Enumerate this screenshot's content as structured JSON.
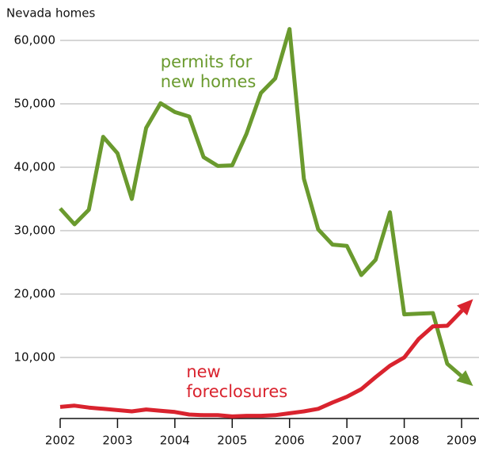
{
  "chart_data": {
    "type": "line",
    "y_axis_label": "Nevada homes",
    "x": [
      2002,
      2002.25,
      2002.5,
      2002.75,
      2003,
      2003.25,
      2003.5,
      2003.75,
      2004,
      2004.25,
      2004.5,
      2004.75,
      2005,
      2005.25,
      2005.5,
      2005.75,
      2006,
      2006.25,
      2006.5,
      2006.75,
      2007,
      2007.25,
      2007.5,
      2007.75,
      2008,
      2008.25,
      2008.5,
      2008.75,
      2009.2
    ],
    "series": [
      {
        "name": "permits for new homes",
        "color": "#6a9a2e",
        "end_arrow": true,
        "values": [
          33500,
          31000,
          33300,
          44800,
          42200,
          35000,
          46200,
          50100,
          48700,
          48000,
          41600,
          40200,
          40300,
          45300,
          51700,
          54000,
          61800,
          38200,
          30200,
          27800,
          27600,
          23000,
          25400,
          32900,
          16800,
          16900,
          17000,
          9000,
          5500
        ]
      },
      {
        "name": "new foreclosures",
        "color": "#d9232e",
        "end_arrow": true,
        "values": [
          2200,
          2400,
          2100,
          1900,
          1700,
          1500,
          1800,
          1600,
          1400,
          1000,
          900,
          900,
          700,
          800,
          800,
          900,
          1200,
          1500,
          1900,
          2900,
          3800,
          5000,
          6900,
          8700,
          10000,
          12900,
          14900,
          15000,
          19200
        ]
      }
    ],
    "annotations": [
      {
        "series": 0,
        "lines": [
          "permits for",
          "new homes"
        ],
        "x": 2003.75,
        "y": 56500
      },
      {
        "series": 1,
        "lines": [
          "new",
          "foreclosures"
        ],
        "x": 2004.2,
        "y": 7600
      }
    ],
    "xlim": [
      2002,
      2009.3
    ],
    "xticks": [
      2002,
      2003,
      2004,
      2005,
      2006,
      2007,
      2008,
      2009
    ],
    "ylim": [
      0,
      62000
    ],
    "yticks": [
      {
        "value": 10000,
        "label": "10,000"
      },
      {
        "value": 20000,
        "label": "20,000"
      },
      {
        "value": 30000,
        "label": "30,000"
      },
      {
        "value": 40000,
        "label": "40,000"
      },
      {
        "value": 50000,
        "label": "50,000"
      },
      {
        "value": 60000,
        "label": "60,000"
      }
    ],
    "grid": true
  }
}
